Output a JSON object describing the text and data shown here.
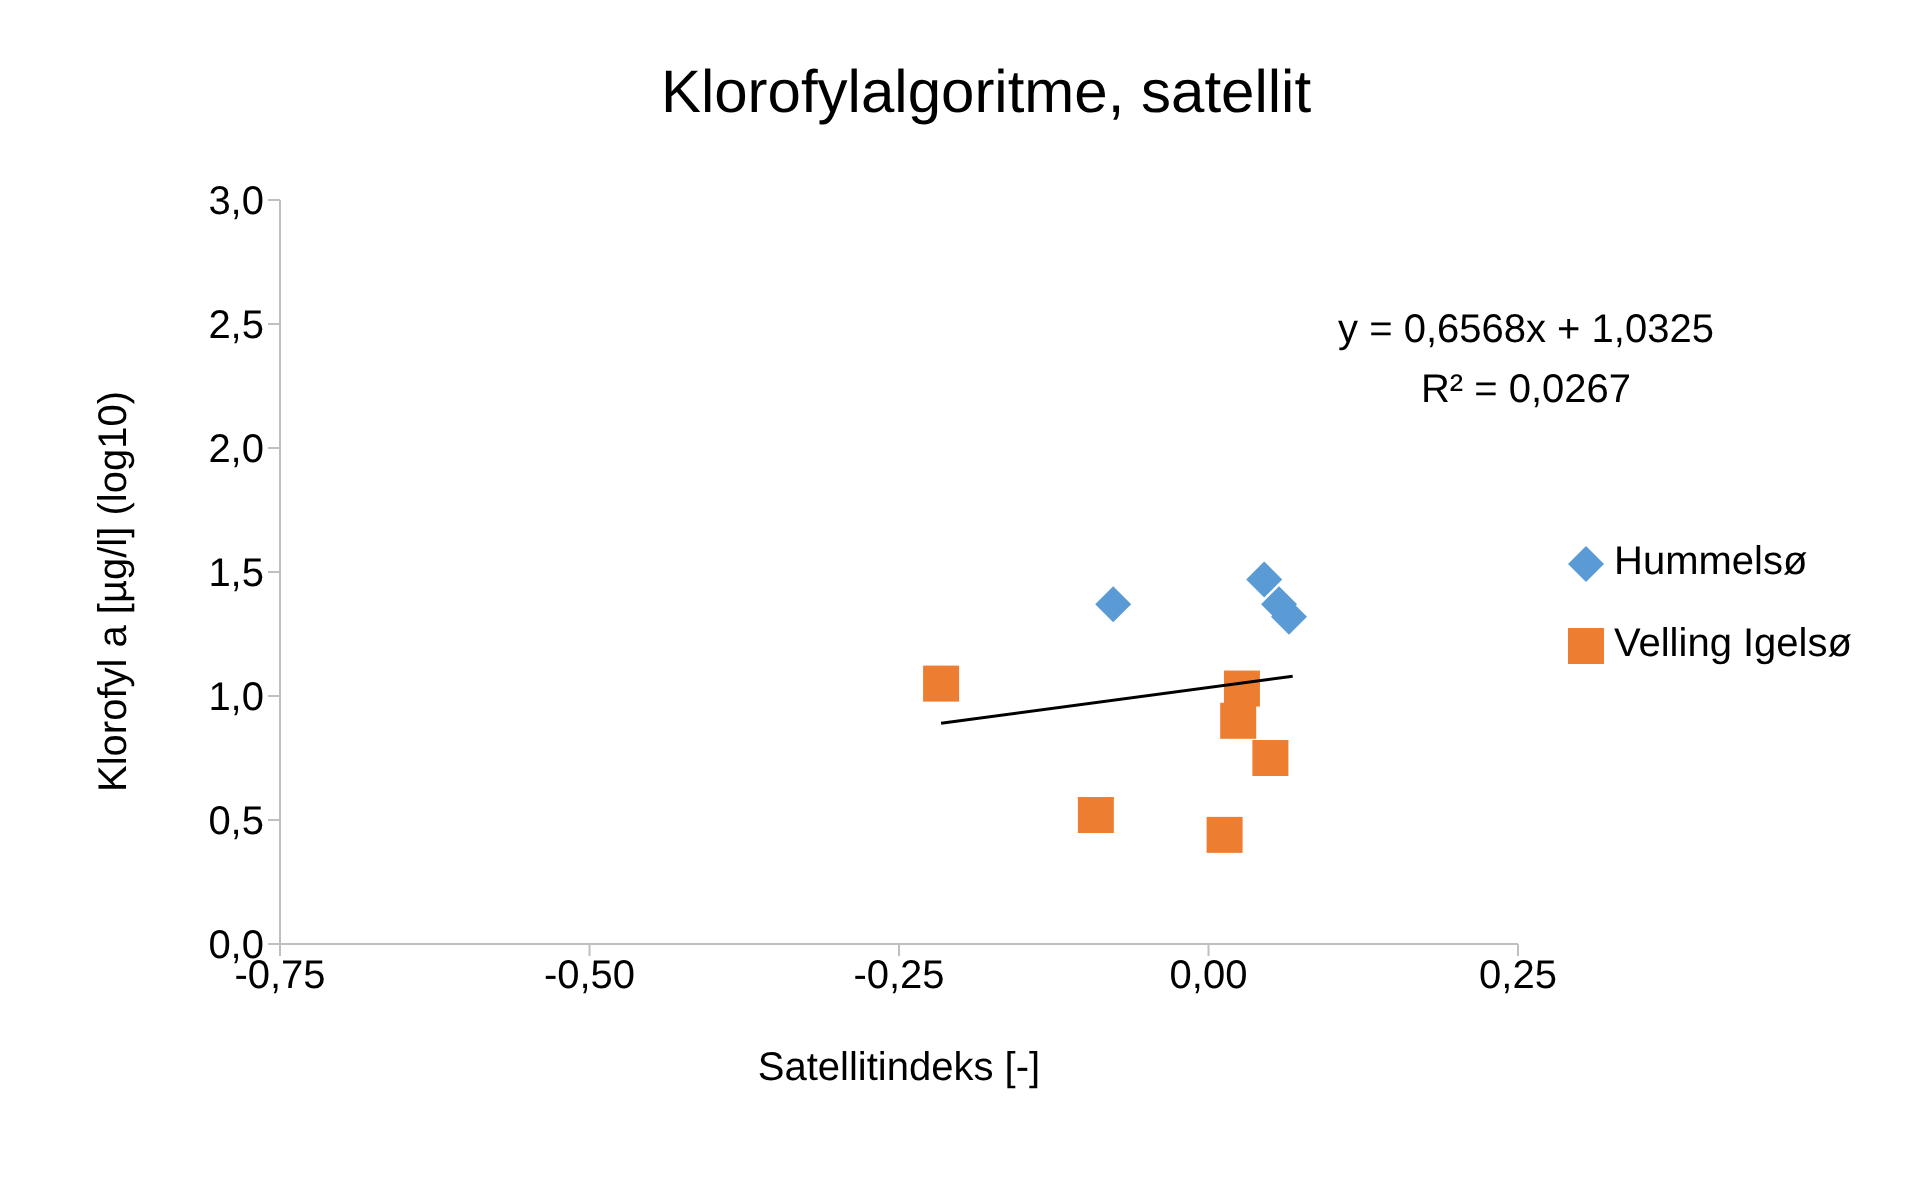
{
  "chart_data": {
    "type": "scatter",
    "title": "Klorofylalgoritme, satellit",
    "xlabel": "Satellitindeks [-]",
    "ylabel": "Klorofyl a [µg/l] (log10)",
    "xlim": [
      -0.75,
      0.25
    ],
    "xticks": [
      {
        "value": -0.75,
        "label": "-0,75"
      },
      {
        "value": -0.5,
        "label": "-0,50"
      },
      {
        "value": -0.25,
        "label": "-0,25"
      },
      {
        "value": 0,
        "label": "0,00"
      },
      {
        "value": 0.25,
        "label": "0,25"
      }
    ],
    "ylim": [
      0,
      3
    ],
    "yticks": [
      {
        "value": 0,
        "label": "0,0"
      },
      {
        "value": 0.5,
        "label": "0,5"
      },
      {
        "value": 1,
        "label": "1,0"
      },
      {
        "value": 1.5,
        "label": "1,5"
      },
      {
        "value": 2,
        "label": "2,0"
      },
      {
        "value": 2.5,
        "label": "2,5"
      },
      {
        "value": 3,
        "label": "3,0"
      }
    ],
    "grid": false,
    "legend": "right",
    "series": [
      {
        "name": "Hummelsø",
        "color": "#5b9bd5",
        "marker": "diamond",
        "x": [
          -0.077,
          0.045,
          0.057,
          0.065
        ],
        "values": [
          1.37,
          1.47,
          1.37,
          1.32
        ]
      },
      {
        "name": "Velling Igelsø",
        "color": "#ed7d31",
        "marker": "square",
        "x": [
          -0.216,
          0.027,
          0.024,
          0.05,
          -0.091,
          0.013
        ],
        "values": [
          1.05,
          1.03,
          0.9,
          0.75,
          0.52,
          0.44
        ]
      },
      {
        "type": "line",
        "color": "#000000",
        "marker": "none",
        "line_style": "solid",
        "x": [
          -0.216,
          0.068
        ],
        "values": [
          0.89,
          1.08
        ]
      }
    ],
    "annotations": [
      "y = 0,6568x + 1,0325\nR² = 0,0267"
    ]
  }
}
